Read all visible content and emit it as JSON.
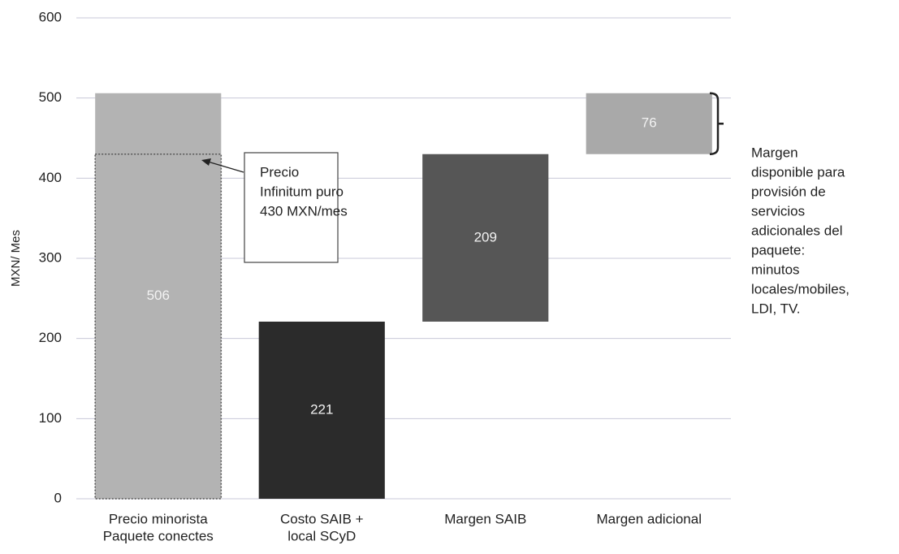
{
  "chart_data": {
    "type": "waterfall",
    "ylabel": "MXN/ Mes",
    "categories": [
      [
        "Precio minorista",
        "Paquete conectes"
      ],
      [
        "Costo SAIB +",
        "local SCyD"
      ],
      [
        "Margen SAIB"
      ],
      [
        "Margen adicional"
      ]
    ],
    "values": [
      506,
      221,
      209,
      76
    ],
    "colors": [
      "#b3b3b3",
      "#2b2b2b",
      "#565656",
      "#a9a9a9"
    ],
    "ylim": [
      0,
      600
    ],
    "yticks": [
      0,
      100,
      200,
      300,
      400,
      500,
      600
    ],
    "grid": true,
    "reference_value": 430,
    "reference_annotation": [
      "Precio",
      "Infinitum puro",
      "430 MXN/mes"
    ],
    "side_annotation": [
      "Margen",
      "disponible para",
      "provisión de",
      "servicios",
      "adicionales del",
      "paquete:",
      "minutos",
      "locales/mobiles,",
      "LDI, TV."
    ]
  }
}
